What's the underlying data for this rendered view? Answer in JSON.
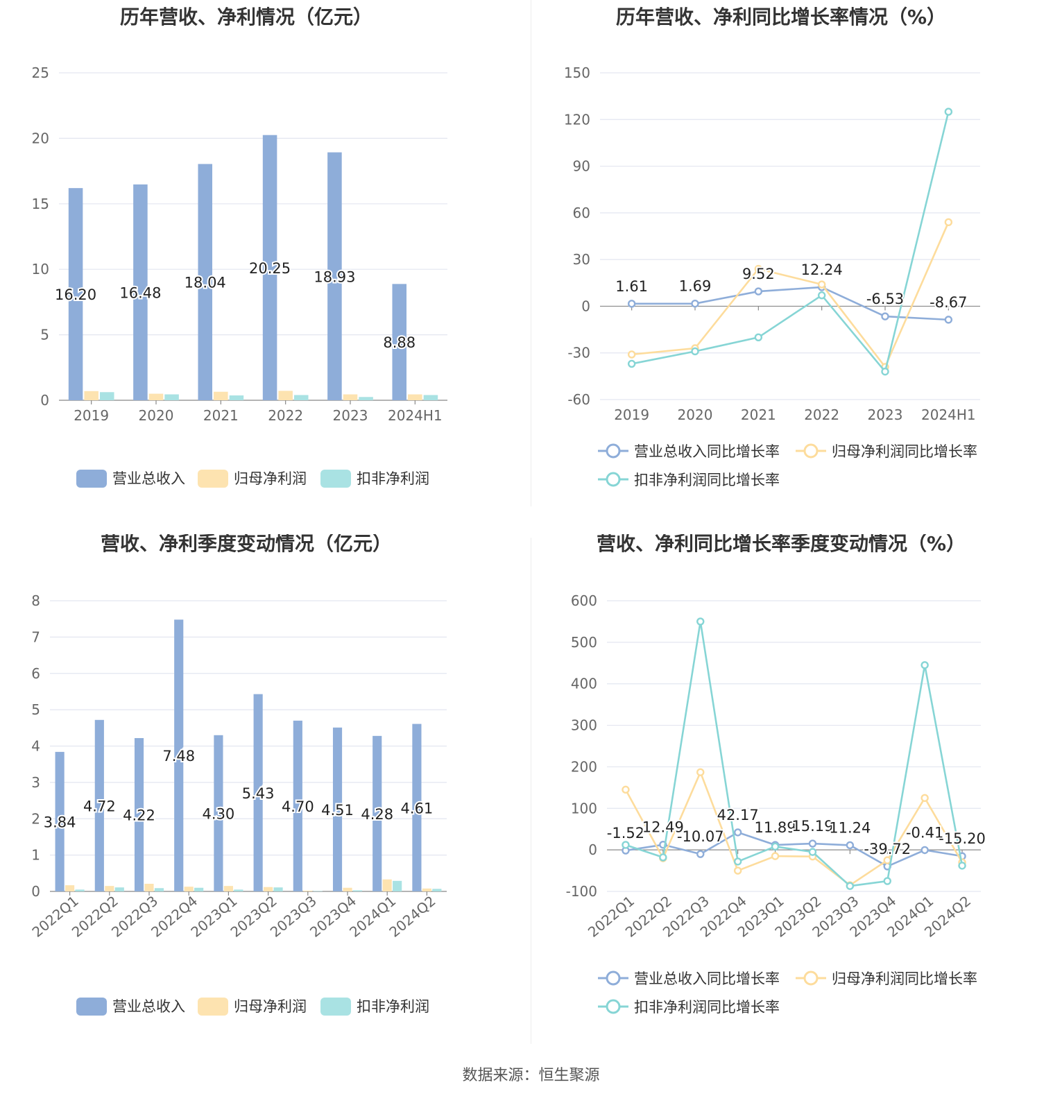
{
  "source": "数据来源：恒生聚源",
  "colors": {
    "revenue": "#8eadd9",
    "net": "#fde3b0",
    "deducted": "#a9e2e3",
    "revenue_line": "#8eadd9",
    "net_line": "#fddc9c",
    "deducted_line": "#86d5d5"
  },
  "charts": [
    {
      "id": "annual-bars",
      "title": "历年营收、净利情况（亿元）",
      "chart_data": {
        "type": "bar",
        "categories": [
          "2019",
          "2020",
          "2021",
          "2022",
          "2023",
          "2024H1"
        ],
        "ylim": [
          0,
          25
        ],
        "yticks": [
          "0",
          "5",
          "10",
          "15",
          "20",
          "25"
        ],
        "series": [
          {
            "name": "营业总收入",
            "values": [
              16.2,
              16.48,
              18.04,
              20.25,
              18.93,
              8.88
            ],
            "labels": [
              "16.20",
              "16.48",
              "18.04",
              "20.25",
              "18.93",
              "8.88"
            ]
          },
          {
            "name": "归母净利润",
            "values": [
              0.7,
              0.5,
              0.65,
              0.72,
              0.45,
              0.45
            ]
          },
          {
            "name": "扣非净利润",
            "values": [
              0.62,
              0.45,
              0.37,
              0.4,
              0.25,
              0.4
            ]
          }
        ],
        "legend": "bottom"
      }
    },
    {
      "id": "annual-growth",
      "title": "历年营收、净利同比增长率情况（%）",
      "chart_data": {
        "type": "line",
        "categories": [
          "2019",
          "2020",
          "2021",
          "2022",
          "2023",
          "2024H1"
        ],
        "ylim": [
          -60,
          150
        ],
        "yticks": [
          "-60",
          "-30",
          "0",
          "30",
          "60",
          "90",
          "120",
          "150"
        ],
        "series": [
          {
            "name": "营业总收入同比增长率",
            "values": [
              1.61,
              1.69,
              9.52,
              12.24,
              -6.53,
              -8.67
            ],
            "labels": [
              "1.61",
              "1.69",
              "9.52",
              "12.24",
              "-6.53",
              "-8.67"
            ]
          },
          {
            "name": "归母净利润同比增长率",
            "values": [
              -31,
              -27,
              24,
              14,
              -39,
              54
            ]
          },
          {
            "name": "扣非净利润同比增长率",
            "values": [
              -37,
              -29,
              -20,
              7,
              -42,
              125
            ]
          }
        ],
        "legend": "bottom"
      }
    },
    {
      "id": "quarterly-bars",
      "title": "营收、净利季度变动情况（亿元）",
      "chart_data": {
        "type": "bar",
        "categories": [
          "2022Q1",
          "2022Q2",
          "2022Q3",
          "2022Q4",
          "2023Q1",
          "2023Q2",
          "2023Q3",
          "2023Q4",
          "2024Q1",
          "2024Q2"
        ],
        "ylim": [
          0,
          8
        ],
        "yticks": [
          "0",
          "1",
          "2",
          "3",
          "4",
          "5",
          "6",
          "7",
          "8"
        ],
        "series": [
          {
            "name": "营业总收入",
            "values": [
              3.84,
              4.72,
              4.22,
              7.48,
              4.3,
              5.43,
              4.7,
              4.51,
              4.28,
              4.61
            ],
            "labels": [
              "3.84",
              "4.72",
              "4.22",
              "7.48",
              "4.30",
              "5.43",
              "4.70",
              "4.51",
              "4.28",
              "4.61"
            ]
          },
          {
            "name": "归母净利润",
            "values": [
              0.17,
              0.15,
              0.21,
              0.13,
              0.15,
              0.12,
              0.02,
              0.1,
              0.33,
              0.08
            ]
          },
          {
            "name": "扣非净利润",
            "values": [
              0.05,
              0.11,
              0.09,
              0.1,
              0.05,
              0.11,
              0.01,
              0.03,
              0.29,
              0.07
            ]
          }
        ],
        "legend": "bottom"
      }
    },
    {
      "id": "quarterly-growth",
      "title": "营收、净利同比增长率季度变动情况（%）",
      "chart_data": {
        "type": "line",
        "categories": [
          "2022Q1",
          "2022Q2",
          "2022Q3",
          "2022Q4",
          "2023Q1",
          "2023Q2",
          "2023Q3",
          "2023Q4",
          "2024Q1",
          "2024Q2"
        ],
        "ylim": [
          -100,
          600
        ],
        "yticks": [
          "-100",
          "0",
          "100",
          "200",
          "300",
          "400",
          "500",
          "600"
        ],
        "series": [
          {
            "name": "营业总收入同比增长率",
            "values": [
              -1.52,
              12.49,
              -10.07,
              42.17,
              11.89,
              15.19,
              11.24,
              -39.72,
              -0.41,
              -15.2
            ],
            "labels": [
              "-1.52",
              "12.49",
              "-10.07",
              "42.17",
              "11.89",
              "15.19",
              "11.24",
              "-39.72",
              "-0.41",
              "-15.20"
            ]
          },
          {
            "name": "归母净利润同比增长率",
            "values": [
              145,
              -20,
              187,
              -50,
              -15,
              -16,
              -85,
              -25,
              125,
              -30
            ]
          },
          {
            "name": "扣非净利润同比增长率",
            "values": [
              12,
              -18,
              550,
              -28,
              8,
              -5,
              -87,
              -75,
              445,
              -38
            ]
          }
        ],
        "legend": "bottom"
      }
    }
  ]
}
